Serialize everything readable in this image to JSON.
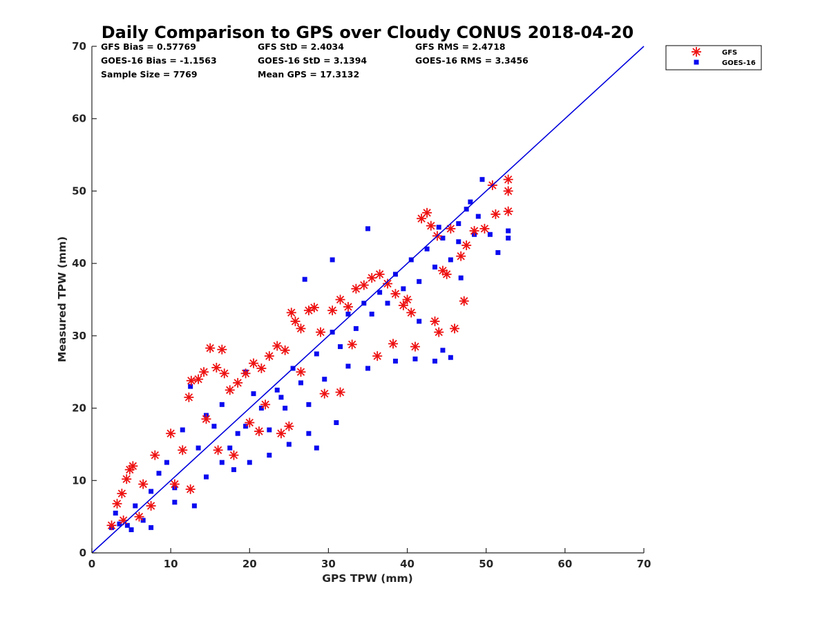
{
  "chart_data": {
    "type": "scatter",
    "title": "Daily Comparison to GPS over Cloudy CONUS 2018-04-20",
    "xlabel": "GPS TPW (mm)",
    "ylabel": "Measured TPW (mm)",
    "xlim": [
      0,
      70
    ],
    "ylim": [
      0,
      70
    ],
    "xticks": [
      "0",
      "10",
      "20",
      "30",
      "40",
      "50",
      "60",
      "70"
    ],
    "yticks": [
      "0",
      "10",
      "20",
      "30",
      "40",
      "50",
      "60",
      "70"
    ],
    "grid": false,
    "legend_position": "outside-top-right",
    "stats": [
      [
        "GFS Bias = 0.57769",
        "GFS StD = 2.4034",
        "GFS RMS = 2.4718"
      ],
      [
        "GOES-16 Bias = -1.1563",
        "GOES-16 StD = 3.1394",
        "GOES-16 RMS = 3.3456"
      ],
      [
        "Sample Size = 7769",
        "Mean GPS = 17.3132"
      ]
    ],
    "reference_line": {
      "name": "1:1",
      "x": [
        0,
        70
      ],
      "y": [
        0,
        70
      ],
      "color": "#0000dd"
    },
    "series": [
      {
        "name": "GFS",
        "marker": "asterisk",
        "color": "#ee1111",
        "sample_points": [
          [
            2.5,
            3.8
          ],
          [
            3.2,
            6.8
          ],
          [
            3.8,
            8.2
          ],
          [
            4.4,
            10.2
          ],
          [
            4.8,
            11.5
          ],
          [
            5.2,
            12.0
          ],
          [
            6.5,
            9.5
          ],
          [
            8.0,
            13.5
          ],
          [
            10.0,
            16.5
          ],
          [
            11.5,
            14.2
          ],
          [
            12.3,
            21.5
          ],
          [
            12.6,
            23.8
          ],
          [
            13.5,
            24.0
          ],
          [
            14.2,
            25.0
          ],
          [
            15.0,
            28.3
          ],
          [
            15.8,
            25.6
          ],
          [
            16.5,
            28.1
          ],
          [
            16.8,
            24.8
          ],
          [
            17.5,
            22.5
          ],
          [
            18.5,
            23.5
          ],
          [
            19.5,
            24.8
          ],
          [
            20.5,
            26.2
          ],
          [
            21.5,
            25.5
          ],
          [
            22.5,
            27.2
          ],
          [
            23.5,
            28.6
          ],
          [
            24.5,
            28.0
          ],
          [
            25.3,
            33.2
          ],
          [
            25.8,
            32.0
          ],
          [
            26.5,
            31.0
          ],
          [
            27.5,
            33.5
          ],
          [
            28.2,
            33.9
          ],
          [
            29.0,
            30.5
          ],
          [
            30.5,
            33.5
          ],
          [
            31.5,
            35.0
          ],
          [
            32.5,
            34.0
          ],
          [
            33.5,
            36.5
          ],
          [
            34.5,
            37.0
          ],
          [
            35.5,
            38.0
          ],
          [
            36.5,
            38.5
          ],
          [
            37.5,
            37.2
          ],
          [
            38.5,
            35.8
          ],
          [
            39.5,
            34.2
          ],
          [
            40.5,
            33.2
          ],
          [
            41.0,
            28.5
          ],
          [
            41.8,
            46.2
          ],
          [
            42.5,
            47.0
          ],
          [
            43.0,
            45.2
          ],
          [
            43.5,
            32.0
          ],
          [
            44.0,
            30.5
          ],
          [
            44.5,
            39.0
          ],
          [
            45.0,
            38.5
          ],
          [
            45.5,
            44.8
          ],
          [
            46.0,
            31.0
          ],
          [
            46.8,
            41.0
          ],
          [
            47.2,
            34.8
          ],
          [
            47.5,
            42.5
          ],
          [
            48.5,
            44.5
          ],
          [
            49.8,
            44.8
          ],
          [
            50.8,
            50.8
          ],
          [
            51.2,
            46.8
          ],
          [
            52.8,
            51.6
          ],
          [
            52.8,
            50.0
          ],
          [
            52.8,
            47.2
          ],
          [
            25.0,
            17.5
          ],
          [
            29.5,
            22.0
          ],
          [
            31.5,
            22.2
          ],
          [
            36.2,
            27.2
          ],
          [
            20.0,
            18.0
          ],
          [
            22.0,
            20.5
          ],
          [
            14.5,
            18.5
          ],
          [
            12.5,
            8.8
          ],
          [
            7.5,
            6.5
          ],
          [
            24.0,
            16.5
          ],
          [
            18.0,
            13.5
          ],
          [
            40.0,
            35.0
          ],
          [
            33.0,
            28.8
          ],
          [
            26.5,
            25.0
          ],
          [
            21.2,
            16.8
          ],
          [
            16.0,
            14.2
          ],
          [
            10.5,
            9.5
          ],
          [
            6.0,
            5.0
          ],
          [
            4.0,
            4.5
          ],
          [
            38.2,
            28.9
          ],
          [
            43.8,
            43.8
          ]
        ]
      },
      {
        "name": "GOES-16",
        "marker": "square",
        "color": "#0a0af0",
        "sample_points": [
          [
            2.5,
            3.5
          ],
          [
            3.0,
            5.5
          ],
          [
            3.5,
            4.0
          ],
          [
            4.5,
            3.8
          ],
          [
            5.5,
            6.5
          ],
          [
            6.5,
            4.5
          ],
          [
            7.5,
            8.5
          ],
          [
            8.5,
            11.0
          ],
          [
            9.5,
            12.5
          ],
          [
            10.5,
            9.0
          ],
          [
            11.5,
            17.0
          ],
          [
            12.5,
            23.0
          ],
          [
            13.5,
            14.5
          ],
          [
            14.5,
            19.0
          ],
          [
            15.5,
            17.5
          ],
          [
            16.5,
            20.5
          ],
          [
            17.5,
            14.5
          ],
          [
            18.5,
            16.5
          ],
          [
            19.5,
            17.5
          ],
          [
            20.5,
            22.0
          ],
          [
            21.5,
            20.0
          ],
          [
            22.5,
            17.0
          ],
          [
            23.5,
            22.5
          ],
          [
            24.5,
            20.0
          ],
          [
            25.5,
            25.5
          ],
          [
            26.5,
            23.5
          ],
          [
            27.5,
            20.5
          ],
          [
            28.5,
            27.5
          ],
          [
            29.5,
            24.0
          ],
          [
            30.5,
            30.5
          ],
          [
            31.5,
            28.5
          ],
          [
            32.5,
            33.0
          ],
          [
            33.5,
            31.0
          ],
          [
            34.5,
            34.5
          ],
          [
            35.5,
            33.0
          ],
          [
            36.5,
            36.0
          ],
          [
            37.5,
            34.5
          ],
          [
            38.5,
            38.5
          ],
          [
            39.5,
            36.5
          ],
          [
            40.5,
            40.5
          ],
          [
            41.5,
            37.5
          ],
          [
            42.5,
            42.0
          ],
          [
            43.5,
            39.5
          ],
          [
            44.5,
            43.5
          ],
          [
            45.5,
            40.5
          ],
          [
            46.5,
            45.5
          ],
          [
            47.5,
            47.5
          ],
          [
            48.5,
            44.0
          ],
          [
            49.0,
            46.5
          ],
          [
            50.5,
            44.0
          ],
          [
            51.5,
            41.5
          ],
          [
            52.8,
            43.5
          ],
          [
            52.8,
            44.5
          ],
          [
            49.5,
            51.6
          ],
          [
            48.0,
            48.5
          ],
          [
            46.8,
            38.0
          ],
          [
            44.5,
            28.0
          ],
          [
            45.5,
            27.0
          ],
          [
            43.5,
            26.5
          ],
          [
            41.0,
            26.8
          ],
          [
            38.5,
            26.5
          ],
          [
            35.0,
            25.5
          ],
          [
            32.5,
            25.8
          ],
          [
            31.0,
            18.0
          ],
          [
            27.5,
            16.5
          ],
          [
            25.0,
            15.0
          ],
          [
            22.5,
            13.5
          ],
          [
            20.0,
            12.5
          ],
          [
            28.5,
            14.5
          ],
          [
            35.0,
            44.8
          ],
          [
            30.5,
            40.5
          ],
          [
            27.0,
            37.8
          ],
          [
            24.0,
            21.5
          ],
          [
            19.5,
            25.0
          ],
          [
            16.5,
            12.5
          ],
          [
            13.0,
            6.5
          ],
          [
            10.5,
            7.0
          ],
          [
            7.5,
            3.5
          ],
          [
            5.0,
            3.2
          ],
          [
            14.5,
            10.5
          ],
          [
            18.0,
            11.5
          ],
          [
            41.5,
            32.0
          ],
          [
            44.0,
            45.0
          ],
          [
            46.5,
            43.0
          ]
        ]
      }
    ]
  }
}
